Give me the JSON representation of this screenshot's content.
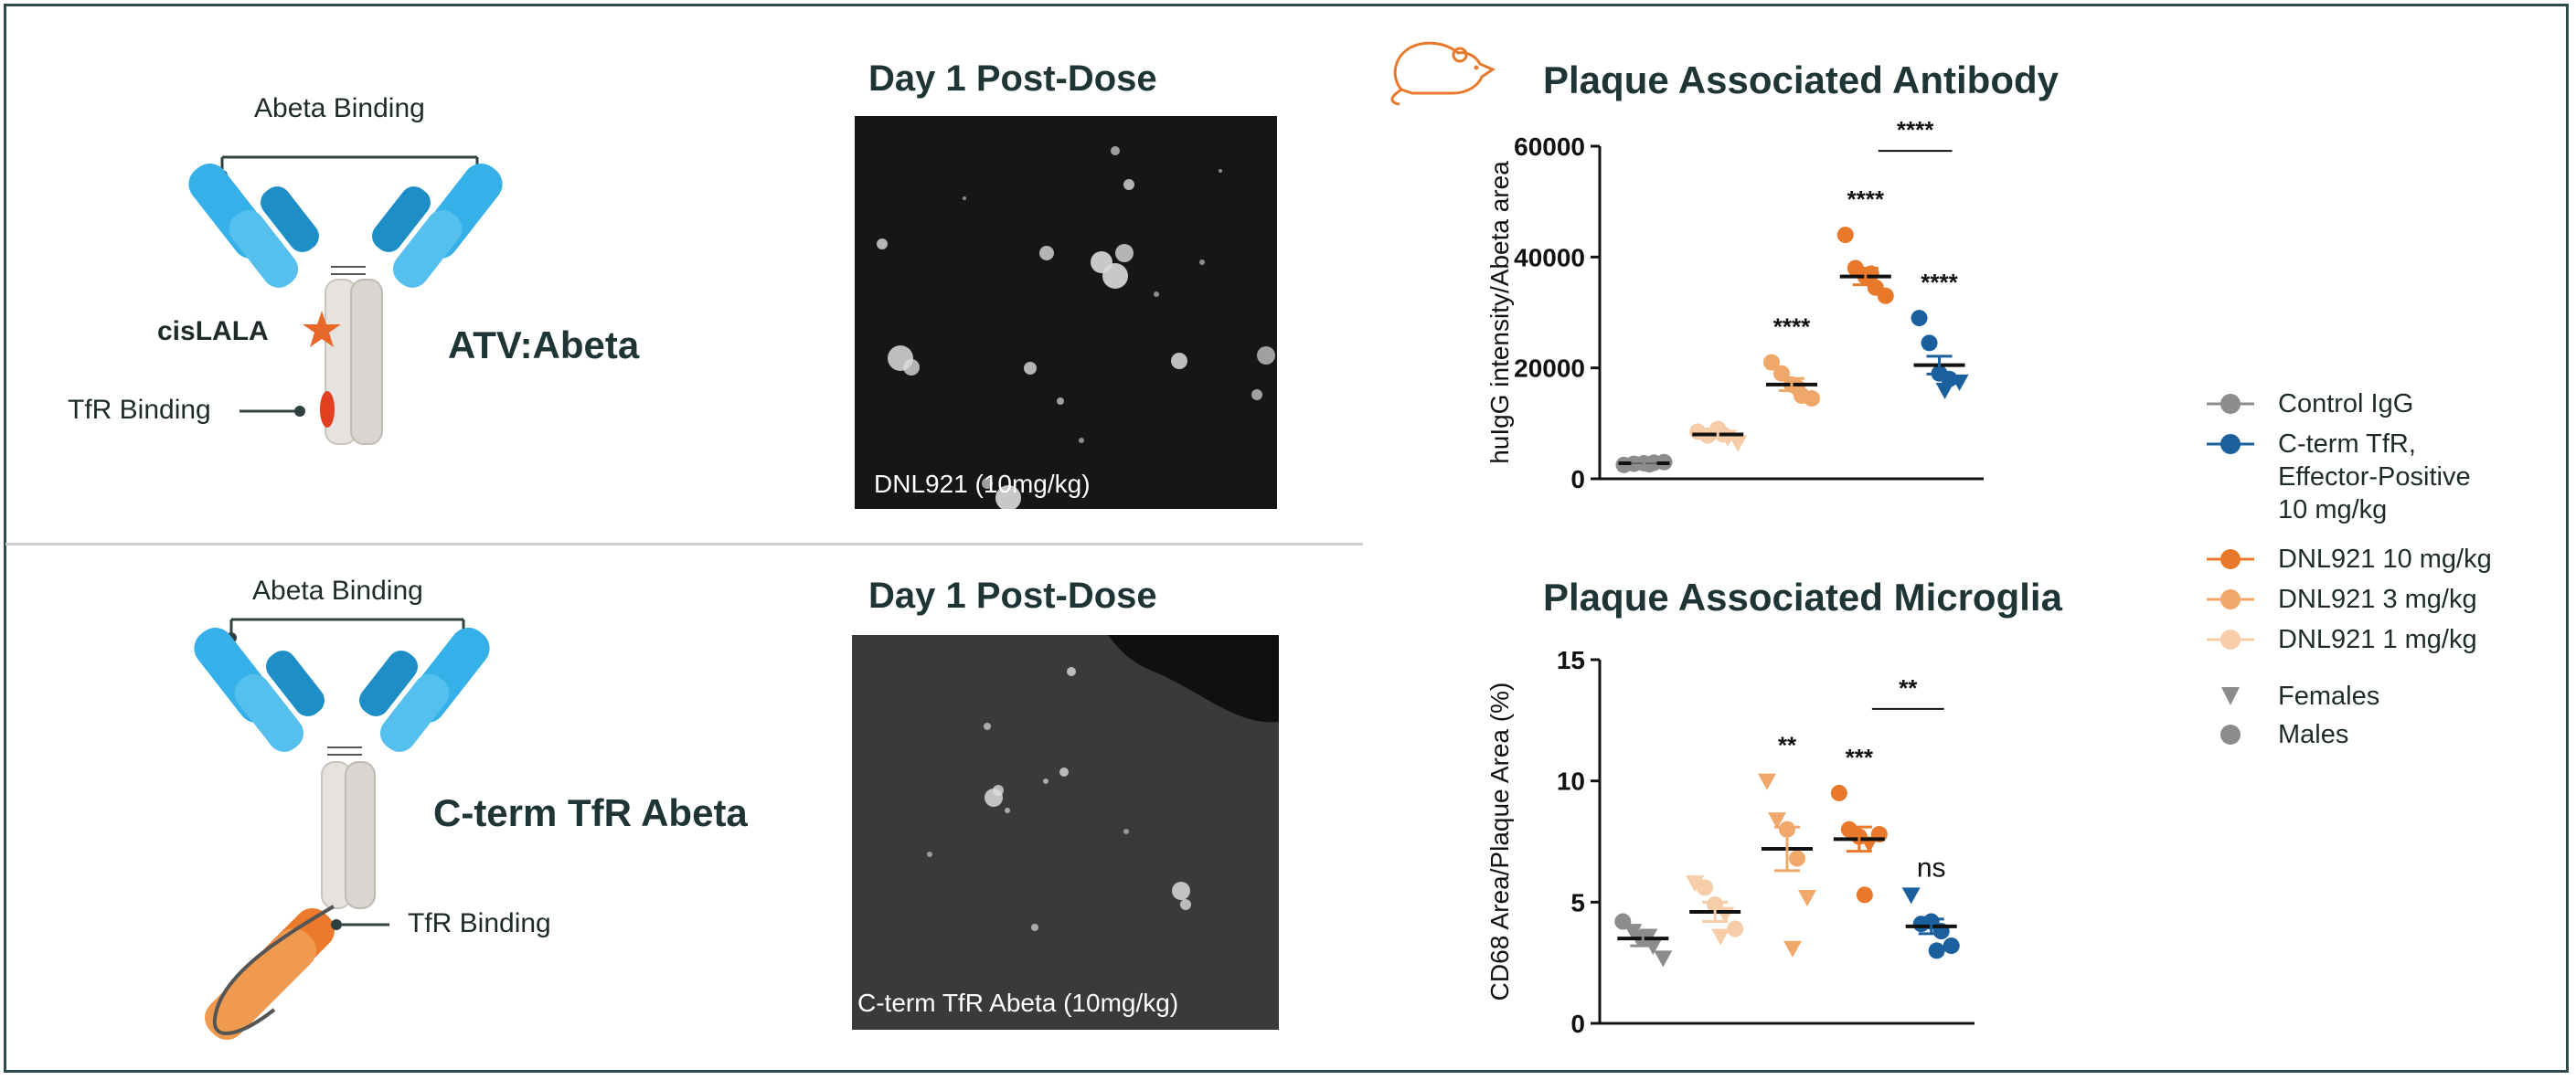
{
  "top_panel": {
    "abeta_binding": "Abeta Binding",
    "cislala": "cisLALA",
    "tfr_binding": "TfR Binding",
    "name": "ATV:Abeta",
    "image_title": "Day 1 Post-Dose",
    "image_caption": "DNL921 (10mg/kg)"
  },
  "bottom_panel": {
    "abeta_binding": "Abeta Binding",
    "tfr_binding": "TfR Binding",
    "name": "C-term TfR Abeta",
    "image_title": "Day 1 Post-Dose",
    "image_caption": "C-term TfR Abeta (10mg/kg)"
  },
  "colors": {
    "control": "#8c8c8c",
    "cterm": "#1a5f9e",
    "dnl10": "#e8782a",
    "dnl3": "#f0a86a",
    "dnl1": "#f6cda8",
    "antibody_blue": "#33a8e0",
    "tfr_orange": "#e86a24"
  },
  "legend": {
    "items": [
      {
        "label": "Control IgG",
        "color": "#8c8c8c"
      },
      {
        "label": "C-term TfR,",
        "color": "#1a5f9e"
      },
      {
        "label": "Effector-Positive",
        "color": ""
      },
      {
        "label": "10 mg/kg",
        "color": ""
      },
      {
        "label": "DNL921 10 mg/kg",
        "color": "#e8782a"
      },
      {
        "label": "DNL921 3 mg/kg",
        "color": "#f0a86a"
      },
      {
        "label": "DNL921 1 mg/kg",
        "color": "#f6cda8"
      }
    ],
    "females": "Females",
    "males": "Males"
  },
  "chart_data": [
    {
      "type": "scatter",
      "title": "Plaque Associated Antibody",
      "xlabel": "",
      "ylabel": "huIgG intensity/Abeta area",
      "ylim": [
        0,
        60000
      ],
      "yticks": [
        0,
        20000,
        40000,
        60000
      ],
      "ytick_labels": [
        "0",
        "20000",
        "40000",
        "60000"
      ],
      "groups": [
        {
          "name": "Control IgG",
          "color": "#8c8c8c",
          "mean": 2800,
          "sem": 300,
          "points": [
            {
              "v": 2500,
              "s": "circle"
            },
            {
              "v": 2700,
              "s": "circle"
            },
            {
              "v": 2800,
              "s": "circle"
            },
            {
              "v": 2900,
              "s": "circle"
            },
            {
              "v": 3000,
              "s": "circle"
            },
            {
              "v": 2600,
              "s": "circle"
            }
          ],
          "sig": ""
        },
        {
          "name": "DNL921 1 mg/kg",
          "color": "#f6cda8",
          "mean": 8000,
          "sem": 600,
          "points": [
            {
              "v": 8500,
              "s": "circle"
            },
            {
              "v": 7800,
              "s": "circle"
            },
            {
              "v": 9000,
              "s": "circle"
            },
            {
              "v": 7500,
              "s": "triangle"
            },
            {
              "v": 6500,
              "s": "triangle"
            },
            {
              "v": 8000,
              "s": "circle"
            }
          ],
          "sig": ""
        },
        {
          "name": "DNL921 3 mg/kg",
          "color": "#f0a86a",
          "mean": 17000,
          "sem": 1100,
          "points": [
            {
              "v": 21000,
              "s": "circle"
            },
            {
              "v": 19000,
              "s": "circle"
            },
            {
              "v": 17000,
              "s": "circle"
            },
            {
              "v": 15000,
              "s": "circle"
            },
            {
              "v": 14500,
              "s": "circle"
            },
            {
              "v": 16500,
              "s": "circle"
            }
          ],
          "sig": "****"
        },
        {
          "name": "DNL921 10 mg/kg",
          "color": "#e8782a",
          "mean": 36500,
          "sem": 1500,
          "points": [
            {
              "v": 44000,
              "s": "circle"
            },
            {
              "v": 38000,
              "s": "circle"
            },
            {
              "v": 36500,
              "s": "circle"
            },
            {
              "v": 34500,
              "s": "circle"
            },
            {
              "v": 33000,
              "s": "circle"
            },
            {
              "v": 37000,
              "s": "circle"
            }
          ],
          "sig": "****"
        },
        {
          "name": "C-term TfR, Effector-Positive 10 mg/kg",
          "color": "#1a5f9e",
          "mean": 20500,
          "sem": 1600,
          "points": [
            {
              "v": 29000,
              "s": "circle"
            },
            {
              "v": 24500,
              "s": "circle"
            },
            {
              "v": 19000,
              "s": "circle"
            },
            {
              "v": 18000,
              "s": "circle"
            },
            {
              "v": 17500,
              "s": "triangle"
            },
            {
              "v": 16000,
              "s": "triangle"
            }
          ],
          "sig": "****"
        }
      ],
      "bracket": {
        "from": 3,
        "to": 4,
        "label": "****"
      }
    },
    {
      "type": "scatter",
      "title": "Plaque Associated Microglia",
      "xlabel": "",
      "ylabel": "CD68 Area/Plaque Area (%)",
      "ylim": [
        0,
        15
      ],
      "yticks": [
        0,
        5,
        10,
        15
      ],
      "ytick_labels": [
        "0",
        "5",
        "10",
        "15"
      ],
      "groups": [
        {
          "name": "Control IgG",
          "color": "#8c8c8c",
          "mean": 3.5,
          "sem": 0.3,
          "points": [
            {
              "v": 4.2,
              "s": "circle"
            },
            {
              "v": 3.8,
              "s": "triangle"
            },
            {
              "v": 3.5,
              "s": "circle"
            },
            {
              "v": 3.2,
              "s": "triangle"
            },
            {
              "v": 2.7,
              "s": "triangle"
            },
            {
              "v": 3.6,
              "s": "triangle"
            }
          ],
          "sig": ""
        },
        {
          "name": "DNL921 1 mg/kg",
          "color": "#f6cda8",
          "mean": 4.6,
          "sem": 0.4,
          "points": [
            {
              "v": 5.8,
              "s": "triangle"
            },
            {
              "v": 5.6,
              "s": "circle"
            },
            {
              "v": 4.9,
              "s": "circle"
            },
            {
              "v": 4.5,
              "s": "triangle"
            },
            {
              "v": 3.9,
              "s": "circle"
            },
            {
              "v": 3.6,
              "s": "triangle"
            }
          ],
          "sig": ""
        },
        {
          "name": "DNL921 3 mg/kg",
          "color": "#f0a86a",
          "mean": 7.2,
          "sem": 0.9,
          "points": [
            {
              "v": 10.0,
              "s": "triangle"
            },
            {
              "v": 8.4,
              "s": "triangle"
            },
            {
              "v": 8.0,
              "s": "circle"
            },
            {
              "v": 6.8,
              "s": "circle"
            },
            {
              "v": 5.2,
              "s": "triangle"
            },
            {
              "v": 3.1,
              "s": "triangle"
            }
          ],
          "sig": "**"
        },
        {
          "name": "DNL921 10 mg/kg",
          "color": "#e8782a",
          "mean": 7.6,
          "sem": 0.5,
          "points": [
            {
              "v": 9.5,
              "s": "circle"
            },
            {
              "v": 8.0,
              "s": "circle"
            },
            {
              "v": 7.7,
              "s": "circle"
            },
            {
              "v": 7.4,
              "s": "triangle"
            },
            {
              "v": 7.8,
              "s": "circle"
            },
            {
              "v": 5.3,
              "s": "circle"
            }
          ],
          "sig": "***"
        },
        {
          "name": "C-term TfR, Effector-Positive 10 mg/kg",
          "color": "#1a5f9e",
          "mean": 4.0,
          "sem": 0.3,
          "points": [
            {
              "v": 5.3,
              "s": "triangle"
            },
            {
              "v": 4.1,
              "s": "circle"
            },
            {
              "v": 4.2,
              "s": "circle"
            },
            {
              "v": 3.8,
              "s": "circle"
            },
            {
              "v": 3.2,
              "s": "circle"
            },
            {
              "v": 3.0,
              "s": "circle"
            }
          ],
          "sig": "ns"
        }
      ],
      "bracket": {
        "from": 3,
        "to": 4,
        "label": "**"
      }
    }
  ]
}
